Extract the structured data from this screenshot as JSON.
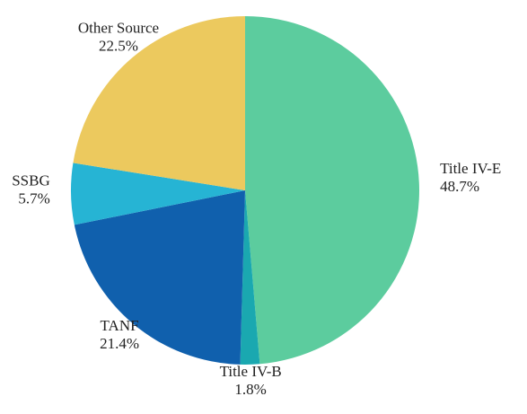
{
  "chart_data": {
    "type": "pie",
    "categories": [
      "Title IV-E",
      "Title IV-B",
      "TANF",
      "SSBG",
      "Other Source"
    ],
    "values": [
      48.7,
      1.8,
      21.4,
      5.7,
      22.5
    ],
    "value_labels": [
      "48.7%",
      "1.8%",
      "21.4%",
      "5.7%",
      "22.5%"
    ],
    "colors": [
      "#5ccc9e",
      "#1aa8b0",
      "#1060ad",
      "#26b4d4",
      "#ecc95e"
    ]
  }
}
